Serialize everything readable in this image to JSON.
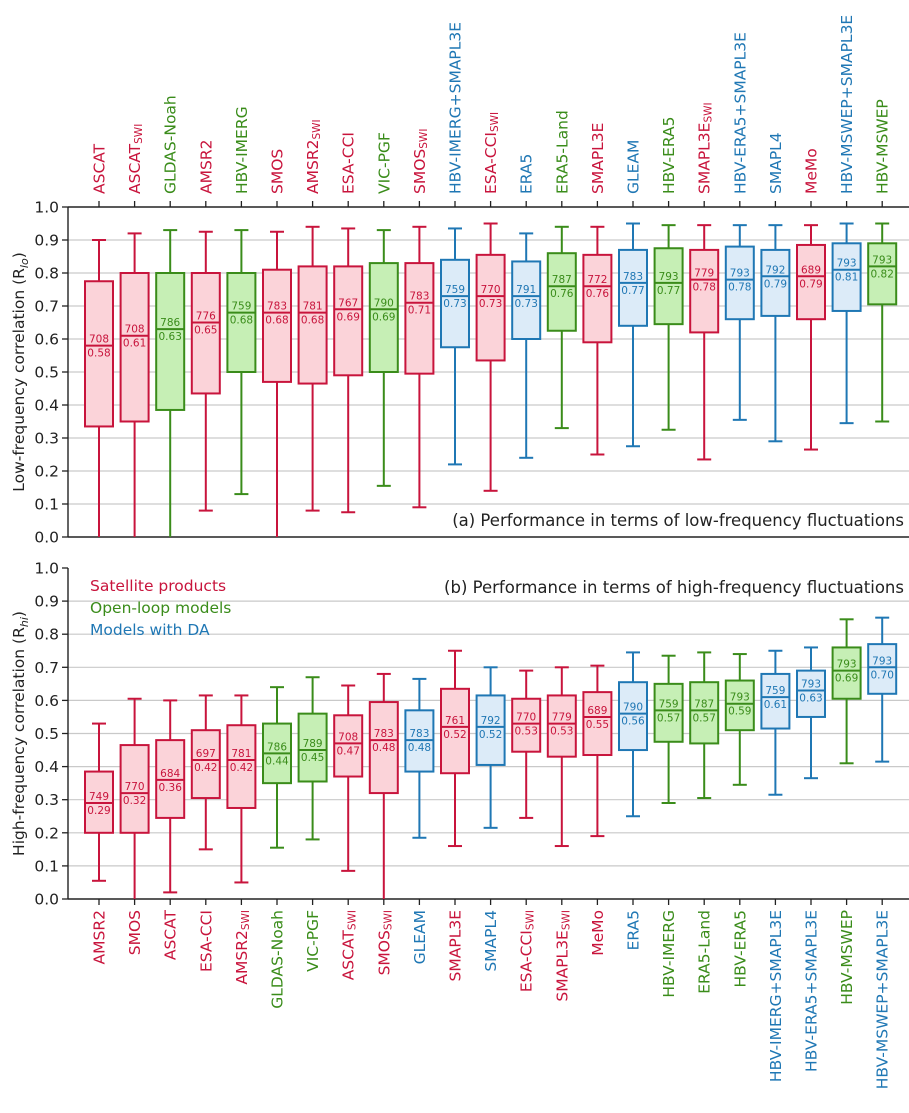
{
  "colors": {
    "satellite": "#c8143c",
    "openloop": "#3a8c1a",
    "da": "#1f77b4",
    "satellite_fill": "#fbd3d9",
    "openloop_fill": "#c6efb5",
    "da_fill": "#dcebf8"
  },
  "legend": {
    "satellite": "Satellite products",
    "openloop": "Open-loop models",
    "da": "Models with DA"
  },
  "chart_data": [
    {
      "type": "box",
      "panel_label": "(a) Performance in terms of low-frequency fluctuations",
      "ylabel": "Low-frequency correlation (R",
      "ylabel_sub": "lo",
      "ylabel_close": ")",
      "ylim": [
        0,
        1
      ],
      "yticks": [
        "0.0",
        "0.1",
        "0.2",
        "0.3",
        "0.4",
        "0.5",
        "0.6",
        "0.7",
        "0.8",
        "0.9",
        "1.0"
      ],
      "grid": true,
      "category_axis": "top",
      "items": [
        {
          "label": "ASCAT",
          "sub": "",
          "group": "satellite",
          "q1": 0.335,
          "median": 0.58,
          "q3": 0.775,
          "wlo": 0.0,
          "whi": 0.9,
          "n": "708",
          "med_label": "0.58"
        },
        {
          "label": "ASCAT",
          "sub": "SWI",
          "group": "satellite",
          "q1": 0.35,
          "median": 0.61,
          "q3": 0.8,
          "wlo": 0.0,
          "whi": 0.92,
          "n": "708",
          "med_label": "0.61"
        },
        {
          "label": "GLDAS-Noah",
          "sub": "",
          "group": "openloop",
          "q1": 0.385,
          "median": 0.63,
          "q3": 0.8,
          "wlo": 0.0,
          "whi": 0.93,
          "n": "786",
          "med_label": "0.63"
        },
        {
          "label": "AMSR2",
          "sub": "",
          "group": "satellite",
          "q1": 0.435,
          "median": 0.65,
          "q3": 0.8,
          "wlo": 0.08,
          "whi": 0.925,
          "n": "776",
          "med_label": "0.65"
        },
        {
          "label": "HBV-IMERG",
          "sub": "",
          "group": "openloop",
          "q1": 0.5,
          "median": 0.68,
          "q3": 0.8,
          "wlo": 0.13,
          "whi": 0.93,
          "n": "759",
          "med_label": "0.68"
        },
        {
          "label": "SMOS",
          "sub": "",
          "group": "satellite",
          "q1": 0.47,
          "median": 0.68,
          "q3": 0.81,
          "wlo": 0.0,
          "whi": 0.925,
          "n": "783",
          "med_label": "0.68"
        },
        {
          "label": "AMSR2",
          "sub": "SWI",
          "group": "satellite",
          "q1": 0.465,
          "median": 0.68,
          "q3": 0.82,
          "wlo": 0.08,
          "whi": 0.94,
          "n": "781",
          "med_label": "0.68"
        },
        {
          "label": "ESA-CCI",
          "sub": "",
          "group": "satellite",
          "q1": 0.49,
          "median": 0.69,
          "q3": 0.82,
          "wlo": 0.075,
          "whi": 0.935,
          "n": "767",
          "med_label": "0.69"
        },
        {
          "label": "VIC-PGF",
          "sub": "",
          "group": "openloop",
          "q1": 0.5,
          "median": 0.69,
          "q3": 0.83,
          "wlo": 0.155,
          "whi": 0.93,
          "n": "790",
          "med_label": "0.69"
        },
        {
          "label": "SMOS",
          "sub": "SWI",
          "group": "satellite",
          "q1": 0.495,
          "median": 0.71,
          "q3": 0.83,
          "wlo": 0.09,
          "whi": 0.94,
          "n": "783",
          "med_label": "0.71"
        },
        {
          "label": "HBV-IMERG+SMAPL3E",
          "sub": "",
          "group": "da",
          "q1": 0.575,
          "median": 0.73,
          "q3": 0.84,
          "wlo": 0.22,
          "whi": 0.935,
          "n": "759",
          "med_label": "0.73"
        },
        {
          "label": "ESA-CCI",
          "sub": "SWI",
          "group": "satellite",
          "q1": 0.535,
          "median": 0.73,
          "q3": 0.855,
          "wlo": 0.14,
          "whi": 0.95,
          "n": "770",
          "med_label": "0.73"
        },
        {
          "label": "ERA5",
          "sub": "",
          "group": "da",
          "q1": 0.6,
          "median": 0.73,
          "q3": 0.835,
          "wlo": 0.24,
          "whi": 0.92,
          "n": "791",
          "med_label": "0.73"
        },
        {
          "label": "ERA5-Land",
          "sub": "",
          "group": "openloop",
          "q1": 0.625,
          "median": 0.76,
          "q3": 0.86,
          "wlo": 0.33,
          "whi": 0.94,
          "n": "787",
          "med_label": "0.76"
        },
        {
          "label": "SMAPL3E",
          "sub": "",
          "group": "satellite",
          "q1": 0.59,
          "median": 0.76,
          "q3": 0.855,
          "wlo": 0.25,
          "whi": 0.94,
          "n": "772",
          "med_label": "0.76"
        },
        {
          "label": "GLEAM",
          "sub": "",
          "group": "da",
          "q1": 0.64,
          "median": 0.77,
          "q3": 0.87,
          "wlo": 0.275,
          "whi": 0.95,
          "n": "783",
          "med_label": "0.77"
        },
        {
          "label": "HBV-ERA5",
          "sub": "",
          "group": "openloop",
          "q1": 0.645,
          "median": 0.77,
          "q3": 0.875,
          "wlo": 0.325,
          "whi": 0.945,
          "n": "793",
          "med_label": "0.77"
        },
        {
          "label": "SMAPL3E",
          "sub": "SWI",
          "group": "satellite",
          "q1": 0.62,
          "median": 0.78,
          "q3": 0.87,
          "wlo": 0.235,
          "whi": 0.945,
          "n": "779",
          "med_label": "0.78"
        },
        {
          "label": "HBV-ERA5+SMAPL3E",
          "sub": "",
          "group": "da",
          "q1": 0.66,
          "median": 0.78,
          "q3": 0.88,
          "wlo": 0.355,
          "whi": 0.945,
          "n": "793",
          "med_label": "0.78"
        },
        {
          "label": "SMAPL4",
          "sub": "",
          "group": "da",
          "q1": 0.67,
          "median": 0.79,
          "q3": 0.87,
          "wlo": 0.29,
          "whi": 0.945,
          "n": "792",
          "med_label": "0.79"
        },
        {
          "label": "MeMo",
          "sub": "",
          "group": "satellite",
          "q1": 0.66,
          "median": 0.79,
          "q3": 0.885,
          "wlo": 0.265,
          "whi": 0.945,
          "n": "689",
          "med_label": "0.79"
        },
        {
          "label": "HBV-MSWEP+SMAPL3E",
          "sub": "",
          "group": "da",
          "q1": 0.685,
          "median": 0.81,
          "q3": 0.89,
          "wlo": 0.345,
          "whi": 0.95,
          "n": "793",
          "med_label": "0.81"
        },
        {
          "label": "HBV-MSWEP",
          "sub": "",
          "group": "openloop",
          "q1": 0.705,
          "median": 0.82,
          "q3": 0.89,
          "wlo": 0.35,
          "whi": 0.95,
          "n": "793",
          "med_label": "0.82"
        }
      ]
    },
    {
      "type": "box",
      "panel_label": "(b) Performance in terms of high-frequency fluctuations",
      "ylabel": "High-frequency correlation (R",
      "ylabel_sub": "hi",
      "ylabel_close": ")",
      "ylim": [
        0,
        1
      ],
      "yticks": [
        "0.0",
        "0.1",
        "0.2",
        "0.3",
        "0.4",
        "0.5",
        "0.6",
        "0.7",
        "0.8",
        "0.9",
        "1.0"
      ],
      "grid": true,
      "category_axis": "bottom",
      "legend_placement": "top-left",
      "items": [
        {
          "label": "AMSR2",
          "sub": "",
          "group": "satellite",
          "q1": 0.2,
          "median": 0.29,
          "q3": 0.385,
          "wlo": 0.055,
          "whi": 0.53,
          "n": "749",
          "med_label": "0.29"
        },
        {
          "label": "SMOS",
          "sub": "",
          "group": "satellite",
          "q1": 0.2,
          "median": 0.32,
          "q3": 0.465,
          "wlo": 0.0,
          "whi": 0.605,
          "n": "770",
          "med_label": "0.32"
        },
        {
          "label": "ASCAT",
          "sub": "",
          "group": "satellite",
          "q1": 0.245,
          "median": 0.36,
          "q3": 0.48,
          "wlo": 0.02,
          "whi": 0.6,
          "n": "684",
          "med_label": "0.36"
        },
        {
          "label": "ESA-CCI",
          "sub": "",
          "group": "satellite",
          "q1": 0.305,
          "median": 0.42,
          "q3": 0.51,
          "wlo": 0.15,
          "whi": 0.615,
          "n": "697",
          "med_label": "0.42"
        },
        {
          "label": "AMSR2",
          "sub": "SWI",
          "group": "satellite",
          "q1": 0.275,
          "median": 0.42,
          "q3": 0.525,
          "wlo": 0.05,
          "whi": 0.615,
          "n": "781",
          "med_label": "0.42"
        },
        {
          "label": "GLDAS-Noah",
          "sub": "",
          "group": "openloop",
          "q1": 0.35,
          "median": 0.44,
          "q3": 0.53,
          "wlo": 0.155,
          "whi": 0.64,
          "n": "786",
          "med_label": "0.44"
        },
        {
          "label": "VIC-PGF",
          "sub": "",
          "group": "openloop",
          "q1": 0.355,
          "median": 0.45,
          "q3": 0.56,
          "wlo": 0.18,
          "whi": 0.67,
          "n": "789",
          "med_label": "0.45"
        },
        {
          "label": "ASCAT",
          "sub": "SWI",
          "group": "satellite",
          "q1": 0.37,
          "median": 0.47,
          "q3": 0.555,
          "wlo": 0.085,
          "whi": 0.645,
          "n": "708",
          "med_label": "0.47"
        },
        {
          "label": "SMOS",
          "sub": "SWI",
          "group": "satellite",
          "q1": 0.32,
          "median": 0.48,
          "q3": 0.595,
          "wlo": 0.0,
          "whi": 0.68,
          "n": "783",
          "med_label": "0.48"
        },
        {
          "label": "GLEAM",
          "sub": "",
          "group": "da",
          "q1": 0.385,
          "median": 0.48,
          "q3": 0.57,
          "wlo": 0.185,
          "whi": 0.665,
          "n": "783",
          "med_label": "0.48"
        },
        {
          "label": "SMAPL3E",
          "sub": "",
          "group": "satellite",
          "q1": 0.38,
          "median": 0.52,
          "q3": 0.635,
          "wlo": 0.16,
          "whi": 0.75,
          "n": "761",
          "med_label": "0.52"
        },
        {
          "label": "SMAPL4",
          "sub": "",
          "group": "da",
          "q1": 0.405,
          "median": 0.52,
          "q3": 0.615,
          "wlo": 0.215,
          "whi": 0.7,
          "n": "792",
          "med_label": "0.52"
        },
        {
          "label": "ESA-CCI",
          "sub": "SWI",
          "group": "satellite",
          "q1": 0.445,
          "median": 0.53,
          "q3": 0.605,
          "wlo": 0.245,
          "whi": 0.69,
          "n": "770",
          "med_label": "0.53"
        },
        {
          "label": "SMAPL3E",
          "sub": "SWI",
          "group": "satellite",
          "q1": 0.43,
          "median": 0.53,
          "q3": 0.615,
          "wlo": 0.16,
          "whi": 0.7,
          "n": "779",
          "med_label": "0.53"
        },
        {
          "label": "MeMo",
          "sub": "",
          "group": "satellite",
          "q1": 0.435,
          "median": 0.55,
          "q3": 0.625,
          "wlo": 0.19,
          "whi": 0.705,
          "n": "689",
          "med_label": "0.55"
        },
        {
          "label": "ERA5",
          "sub": "",
          "group": "da",
          "q1": 0.45,
          "median": 0.56,
          "q3": 0.655,
          "wlo": 0.25,
          "whi": 0.745,
          "n": "790",
          "med_label": "0.56"
        },
        {
          "label": "HBV-IMERG",
          "sub": "",
          "group": "openloop",
          "q1": 0.475,
          "median": 0.57,
          "q3": 0.65,
          "wlo": 0.29,
          "whi": 0.735,
          "n": "759",
          "med_label": "0.57"
        },
        {
          "label": "ERA5-Land",
          "sub": "",
          "group": "openloop",
          "q1": 0.47,
          "median": 0.57,
          "q3": 0.655,
          "wlo": 0.305,
          "whi": 0.745,
          "n": "787",
          "med_label": "0.57"
        },
        {
          "label": "HBV-ERA5",
          "sub": "",
          "group": "openloop",
          "q1": 0.51,
          "median": 0.59,
          "q3": 0.66,
          "wlo": 0.345,
          "whi": 0.74,
          "n": "793",
          "med_label": "0.59"
        },
        {
          "label": "HBV-IMERG+SMAPL3E",
          "sub": "",
          "group": "da",
          "q1": 0.515,
          "median": 0.61,
          "q3": 0.68,
          "wlo": 0.315,
          "whi": 0.75,
          "n": "759",
          "med_label": "0.61"
        },
        {
          "label": "HBV-ERA5+SMAPL3E",
          "sub": "",
          "group": "da",
          "q1": 0.55,
          "median": 0.63,
          "q3": 0.69,
          "wlo": 0.365,
          "whi": 0.76,
          "n": "793",
          "med_label": "0.63"
        },
        {
          "label": "HBV-MSWEP",
          "sub": "",
          "group": "openloop",
          "q1": 0.605,
          "median": 0.69,
          "q3": 0.76,
          "wlo": 0.41,
          "whi": 0.845,
          "n": "793",
          "med_label": "0.69"
        },
        {
          "label": "HBV-MSWEP+SMAPL3E",
          "sub": "",
          "group": "da",
          "q1": 0.62,
          "median": 0.7,
          "q3": 0.77,
          "wlo": 0.415,
          "whi": 0.85,
          "n": "793",
          "med_label": "0.70"
        }
      ]
    }
  ]
}
